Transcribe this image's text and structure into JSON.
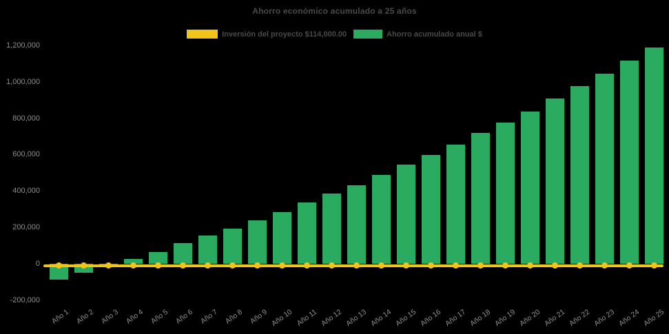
{
  "title": "Ahorro económico acumulado a 25 años",
  "legend": {
    "items": [
      {
        "label": "Inversión del proyecto $114,000.00",
        "color": "#f0c419",
        "series_type": "line"
      },
      {
        "label": "Ahorro acumulado anual $",
        "color": "#2aab5f",
        "series_type": "bar"
      }
    ]
  },
  "colors": {
    "background": "#000000",
    "bar_green": "#2aab5f",
    "line_yellow": "#f0c419",
    "title_text": "#4a4a4a",
    "axis_text": "#8e8e8e"
  },
  "chart_data": {
    "type": "bar",
    "title": "Ahorro económico acumulado a 25 años",
    "categories": [
      "Año 1",
      "Año 2",
      "Año 3",
      "Año 4",
      "Año 5",
      "Año 6",
      "Año 7",
      "Año 8",
      "Año 9",
      "Año 10",
      "Año 11",
      "Año 12",
      "Año 13",
      "Año 14",
      "Año 15",
      "Año 16",
      "Año 17",
      "Año 18",
      "Año 19",
      "Año 20",
      "Año 21",
      "Año 22",
      "Año 23",
      "Año 24",
      "Año 25"
    ],
    "series": [
      {
        "name": "Ahorro acumulado anual $",
        "type": "bar",
        "color": "#2aab5f",
        "values": [
          -86000,
          -48000,
          -4000,
          29000,
          67000,
          114000,
          158000,
          196000,
          238000,
          285000,
          337000,
          388000,
          434000,
          488000,
          547000,
          598000,
          657000,
          720000,
          777000,
          840000,
          911000,
          980000,
          1047000,
          1119000,
          1190000
        ]
      },
      {
        "name": "Inversión del proyecto $114,000.00",
        "type": "line",
        "color": "#f0c419",
        "constant_value": -10000,
        "markers": "circle"
      }
    ],
    "ylim": [
      -200000,
      1200000
    ],
    "ytick_interval": 200000,
    "ytick_labels": [
      "-200,000",
      "0",
      "200,000",
      "400,000",
      "600,000",
      "800,000",
      "1,000,000",
      "1,200,000"
    ],
    "gridlines": false,
    "legend_position": "top-center"
  }
}
